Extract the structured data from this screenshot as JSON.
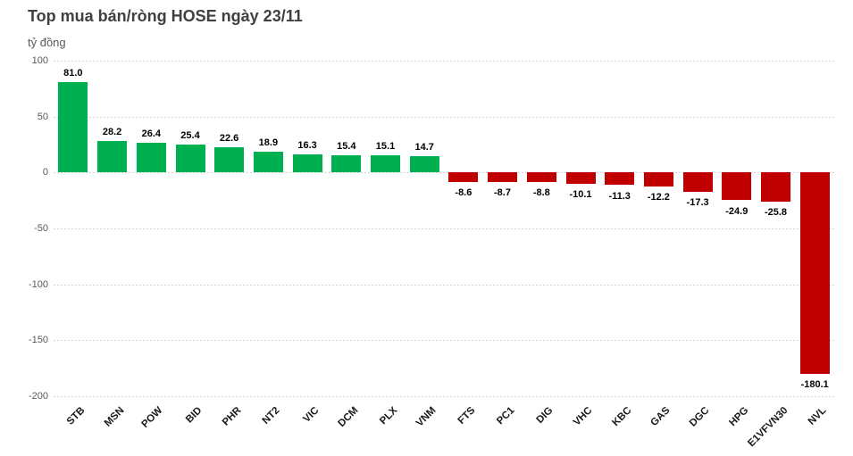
{
  "header": {
    "title": "Top mua bán/ròng HOSE ngày 23/11"
  },
  "chart_data": {
    "type": "bar",
    "title": "Top mua bán/ròng HOSE ngày 23/11",
    "unit_label": "tỷ đồng",
    "xlabel": "",
    "ylabel": "tỷ đồng",
    "categories": [
      "STB",
      "MSN",
      "POW",
      "BID",
      "PHR",
      "NT2",
      "VIC",
      "DCM",
      "PLX",
      "VNM",
      "FTS",
      "PC1",
      "DIG",
      "VHC",
      "KBC",
      "GAS",
      "DGC",
      "HPG",
      "E1VFVN30",
      "NVL"
    ],
    "values": [
      81.0,
      28.2,
      26.4,
      25.4,
      22.6,
      18.9,
      16.3,
      15.4,
      15.1,
      14.7,
      -8.6,
      -8.7,
      -8.8,
      -10.1,
      -11.3,
      -12.2,
      -17.3,
      -24.9,
      -25.8,
      -180.1
    ],
    "value_labels": [
      "81.0",
      "28.2",
      "26.4",
      "25.4",
      "22.6",
      "18.9",
      "16.3",
      "15.4",
      "15.1",
      "14.7",
      "-8.6",
      "-8.7",
      "-8.8",
      "-10.1",
      "-11.3",
      "-12.2",
      "-17.3",
      "-24.9",
      "-25.8",
      "-180.1"
    ],
    "ylim": [
      -200,
      100
    ],
    "yticks": [
      100,
      50,
      0,
      -50,
      -100,
      -150,
      -200
    ],
    "grid": "horizontal-dashed",
    "legend": "none",
    "colors": {
      "positive": "#00B050",
      "negative": "#C00000",
      "title_text": "#404040",
      "axis_text": "#595959",
      "gridline": "#d6d6d6",
      "data_label": "#000000"
    }
  }
}
